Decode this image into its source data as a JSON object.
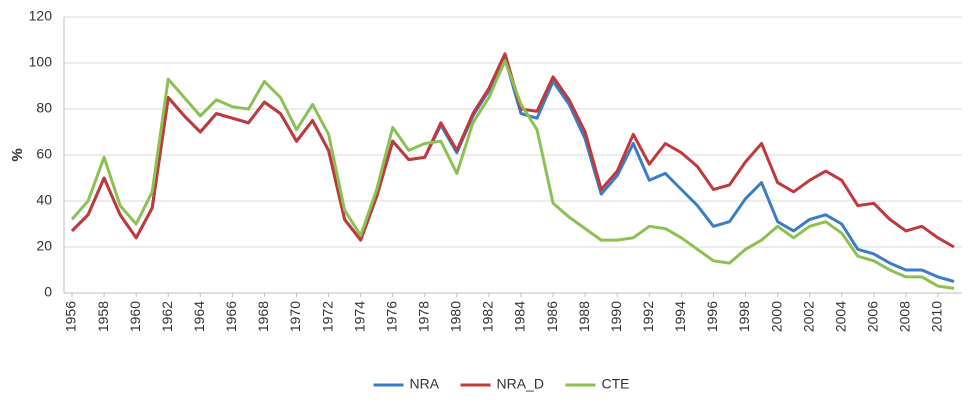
{
  "chart_data": {
    "type": "line",
    "y_label": "%",
    "x": [
      1956,
      1957,
      1958,
      1959,
      1960,
      1961,
      1962,
      1963,
      1964,
      1965,
      1966,
      1967,
      1968,
      1969,
      1970,
      1971,
      1972,
      1973,
      1974,
      1975,
      1976,
      1977,
      1978,
      1979,
      1980,
      1981,
      1982,
      1983,
      1984,
      1985,
      1986,
      1987,
      1988,
      1989,
      1990,
      1991,
      1992,
      1993,
      1994,
      1995,
      1996,
      1997,
      1998,
      1999,
      2000,
      2001,
      2002,
      2003,
      2004,
      2005,
      2006,
      2007,
      2008,
      2009,
      2010,
      2011
    ],
    "series": [
      {
        "name": "NRA",
        "color": "#3b7cc4",
        "values": [
          27,
          34,
          50,
          34,
          24,
          37,
          85,
          77,
          70,
          78,
          76,
          74,
          83,
          78,
          66,
          75,
          62,
          32,
          23,
          42,
          66,
          58,
          59,
          73,
          61,
          77,
          88,
          102,
          78,
          76,
          92,
          82,
          67,
          43,
          51,
          65,
          49,
          52,
          45,
          38,
          29,
          31,
          41,
          48,
          31,
          27,
          32,
          34,
          30,
          19,
          17,
          13,
          10,
          10,
          7,
          5
        ]
      },
      {
        "name": "NRA_D",
        "color": "#c0393b",
        "values": [
          27,
          34,
          50,
          34,
          24,
          37,
          85,
          77,
          70,
          78,
          76,
          74,
          83,
          78,
          66,
          75,
          62,
          32,
          23,
          42,
          66,
          58,
          59,
          74,
          62,
          78,
          89,
          104,
          80,
          79,
          94,
          84,
          70,
          45,
          53,
          69,
          56,
          65,
          61,
          55,
          45,
          47,
          57,
          65,
          48,
          44,
          49,
          53,
          49,
          38,
          39,
          32,
          27,
          29,
          24,
          20
        ]
      },
      {
        "name": "CTE",
        "color": "#8cc152",
        "values": [
          32,
          40,
          59,
          38,
          30,
          44,
          93,
          85,
          77,
          84,
          81,
          80,
          92,
          85,
          71,
          82,
          69,
          36,
          25,
          45,
          72,
          62,
          65,
          66,
          52,
          74,
          85,
          101,
          82,
          71,
          39,
          33,
          28,
          23,
          23,
          24,
          29,
          28,
          24,
          19,
          14,
          13,
          19,
          23,
          29,
          24,
          29,
          31,
          26,
          16,
          14,
          10,
          7,
          7,
          3,
          2
        ]
      }
    ],
    "xlim": [
      1955.5,
      2011.5
    ],
    "xticks": [
      1956,
      1958,
      1960,
      1962,
      1964,
      1966,
      1968,
      1970,
      1972,
      1974,
      1976,
      1978,
      1980,
      1982,
      1984,
      1986,
      1988,
      1990,
      1992,
      1994,
      1996,
      1998,
      2000,
      2002,
      2004,
      2006,
      2008,
      2010
    ],
    "ylim": [
      0,
      120
    ],
    "yticks": [
      0,
      20,
      40,
      60,
      80,
      100,
      120
    ],
    "grid": true,
    "legend": "bottom"
  }
}
